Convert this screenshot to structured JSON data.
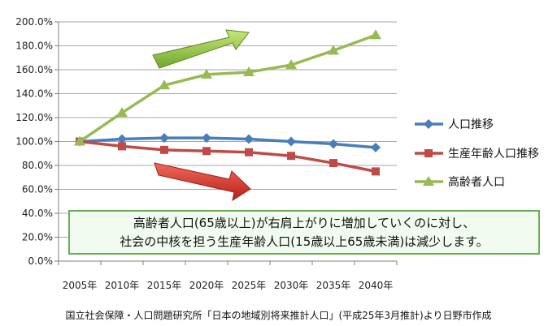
{
  "chart_data": {
    "type": "line",
    "categories": [
      "2005年",
      "2010年",
      "2015年",
      "2020年",
      "2025年",
      "2030年",
      "2035年",
      "2040年"
    ],
    "ylim": [
      0,
      200
    ],
    "yticks": [
      "0.0%",
      "20.0%",
      "40.0%",
      "60.0%",
      "80.0%",
      "100.0%",
      "120.0%",
      "140.0%",
      "160.0%",
      "180.0%",
      "200.0%"
    ],
    "grid": true,
    "legend_position": "right",
    "series": [
      {
        "name": "人口推移",
        "color": "#4a7ebb",
        "marker": "diamond",
        "values": [
          100,
          102,
          103,
          103,
          102,
          100,
          98,
          95
        ]
      },
      {
        "name": "生産年齢人口推移",
        "color": "#be4b48",
        "marker": "square",
        "values": [
          100,
          96,
          93,
          92,
          91,
          88,
          82,
          75
        ]
      },
      {
        "name": "高齢者人口",
        "color": "#98b954",
        "marker": "triangle",
        "values": [
          100,
          124,
          147,
          156,
          158,
          164,
          176,
          189
        ]
      }
    ]
  },
  "note": {
    "line1": "高齢者人口(65歳以上)が右肩上がりに増加していくのに対し、",
    "line2": "社会の中核を担う生産年齢人口(15歳以上65歳未満)は減少します。"
  },
  "source": "国立社会保障・人口問題研究所「日本の地域別将来推計人口」(平成25年3月推計)より日野市作成",
  "arrows": {
    "up_color": "#8fc43a",
    "down_color": "#d8382e"
  }
}
